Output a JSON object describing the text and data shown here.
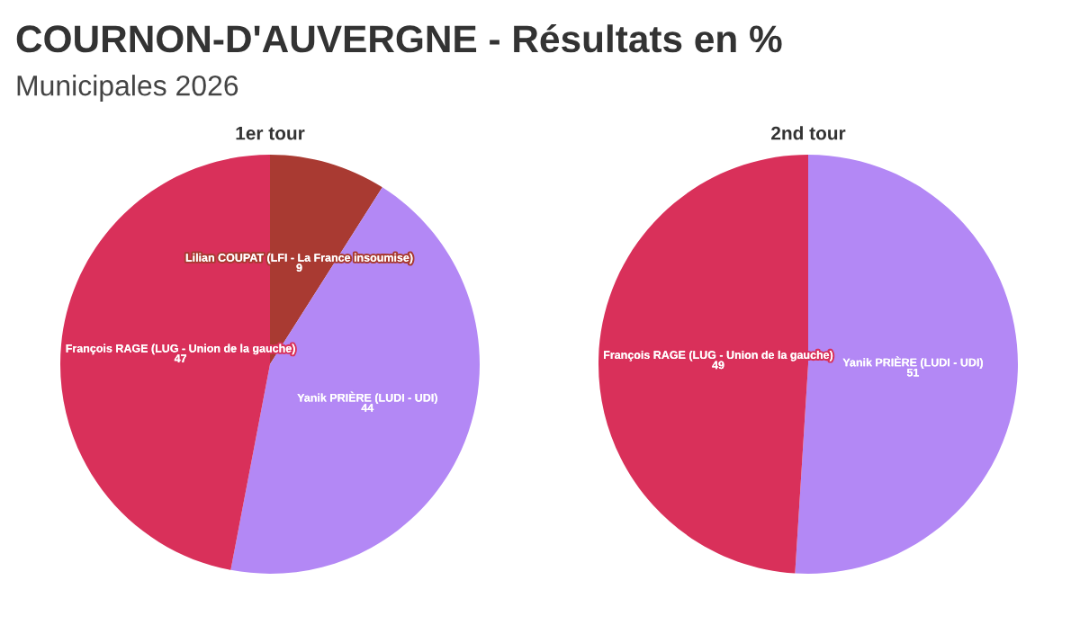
{
  "chart_data": [
    {
      "type": "other",
      "title": "COURNON-D'AUVERGNE - Résultats en %",
      "subtitle": "Municipales 2026"
    },
    {
      "type": "pie",
      "title": "1er tour",
      "categories": [
        "Lilian COUPAT (LFI - La France insoumise)",
        "Yanik PRIÈRE (LUDI - UDI)",
        "François RAGE (LUG - Union de la gauche)"
      ],
      "values": [
        9,
        44,
        47
      ],
      "colors": [
        "#a93a32",
        "#b388f5",
        "#d9305a"
      ],
      "data_labels": true
    },
    {
      "type": "pie",
      "title": "2nd tour",
      "categories": [
        "Yanik PRIÈRE (LUDI - UDI)",
        "François RAGE (LUG - Union de la gauche)"
      ],
      "values": [
        51,
        49
      ],
      "colors": [
        "#b388f5",
        "#d9305a"
      ],
      "data_labels": true
    }
  ]
}
